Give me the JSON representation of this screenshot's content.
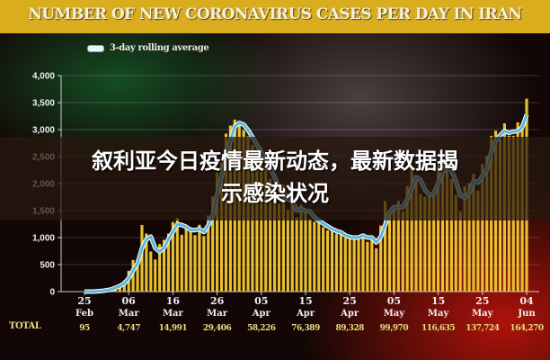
{
  "header": {
    "title": "NUMBER OF NEW CORONAVIRUS CASES PER DAY IN IRAN"
  },
  "overlay": {
    "line1": "叙利亚今日疫情最新动态，最新数据揭",
    "line2": "示感染状况"
  },
  "chart_data": {
    "type": "bar",
    "title": "NUMBER OF NEW CORONAVIRUS CASES PER DAY IN IRAN",
    "ylim": [
      0,
      4000
    ],
    "yticks": [
      "0",
      "500",
      "1,000",
      "1,500",
      "2,000",
      "2,500",
      "3,000",
      "3,500",
      "4,000"
    ],
    "xticks": [
      {
        "day": "25",
        "month": "Feb",
        "total": "95"
      },
      {
        "day": "06",
        "month": "Mar",
        "total": "4,747"
      },
      {
        "day": "16",
        "month": "Mar",
        "total": "14,991"
      },
      {
        "day": "26",
        "month": "Mar",
        "total": "29,406"
      },
      {
        "day": "05",
        "month": "Apr",
        "total": "58,226"
      },
      {
        "day": "15",
        "month": "Apr",
        "total": "76,389"
      },
      {
        "day": "25",
        "month": "Apr",
        "total": "89,328"
      },
      {
        "day": "05",
        "month": "May",
        "total": "99,970"
      },
      {
        "day": "15",
        "month": "May",
        "total": "116,635"
      },
      {
        "day": "25",
        "month": "May",
        "total": "137,724"
      },
      {
        "day": "04",
        "month": "Jun",
        "total": "164,270"
      }
    ],
    "total_label": "TOTAL",
    "legend": [
      {
        "name": "3-day rolling average",
        "color": "#5cb8d8"
      }
    ],
    "bar_color": "#e8c030",
    "line_color": "#5cb8d8",
    "grid": true,
    "values": [
      0,
      0,
      2,
      18,
      13,
      43,
      61,
      106,
      143,
      205,
      385,
      586,
      591,
      1234,
      1076,
      743,
      595,
      881,
      958,
      1075,
      1289,
      1365,
      1053,
      1178,
      1192,
      1046,
      1237,
      1028,
      1411,
      1762,
      2206,
      2389,
      2926,
      3076,
      3186,
      3110,
      2988,
      2875,
      2715,
      2560,
      2483,
      2274,
      2089,
      1997,
      1634,
      1972,
      1512,
      1617,
      1374,
      1606,
      1499,
      1343,
      1294,
      1297,
      1194,
      1134,
      1153,
      1073,
      1063,
      991,
      976,
      1030,
      1006,
      1075,
      920,
      1010,
      802,
      1223,
      1680,
      1485,
      1529,
      1683,
      1481,
      1958,
      2294,
      2102,
      1808,
      1757,
      1806,
      1869,
      2346,
      2392,
      2262,
      2080,
      1787,
      1481,
      1951,
      2011,
      2180,
      1869,
      2364,
      2516,
      2885,
      2979,
      2819,
      3117,
      2889,
      2886,
      3134,
      3117,
      3574
    ]
  }
}
